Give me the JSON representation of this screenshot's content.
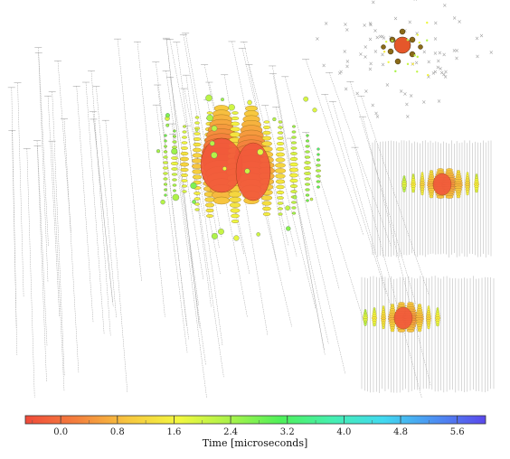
{
  "colorbar": {
    "title": "Time [microseconds]",
    "tick_labels": [
      "0.0",
      "0.8",
      "1.6",
      "2.4",
      "3.2",
      "4.0",
      "4.8",
      "5.6"
    ],
    "range": [
      -0.5,
      6.0
    ],
    "colors": [
      "#f04a3a",
      "#f47f3d",
      "#f7c63f",
      "#f2f73f",
      "#a9f24a",
      "#4ef05a",
      "#45efb0",
      "#41d9f0",
      "#4c90f2",
      "#5a48ec"
    ]
  },
  "views": [
    {
      "name": "main-3d",
      "label": ""
    },
    {
      "name": "top-view",
      "label": ""
    },
    {
      "name": "side-view-a",
      "label": ""
    },
    {
      "name": "side-view-b",
      "label": ""
    }
  ]
}
